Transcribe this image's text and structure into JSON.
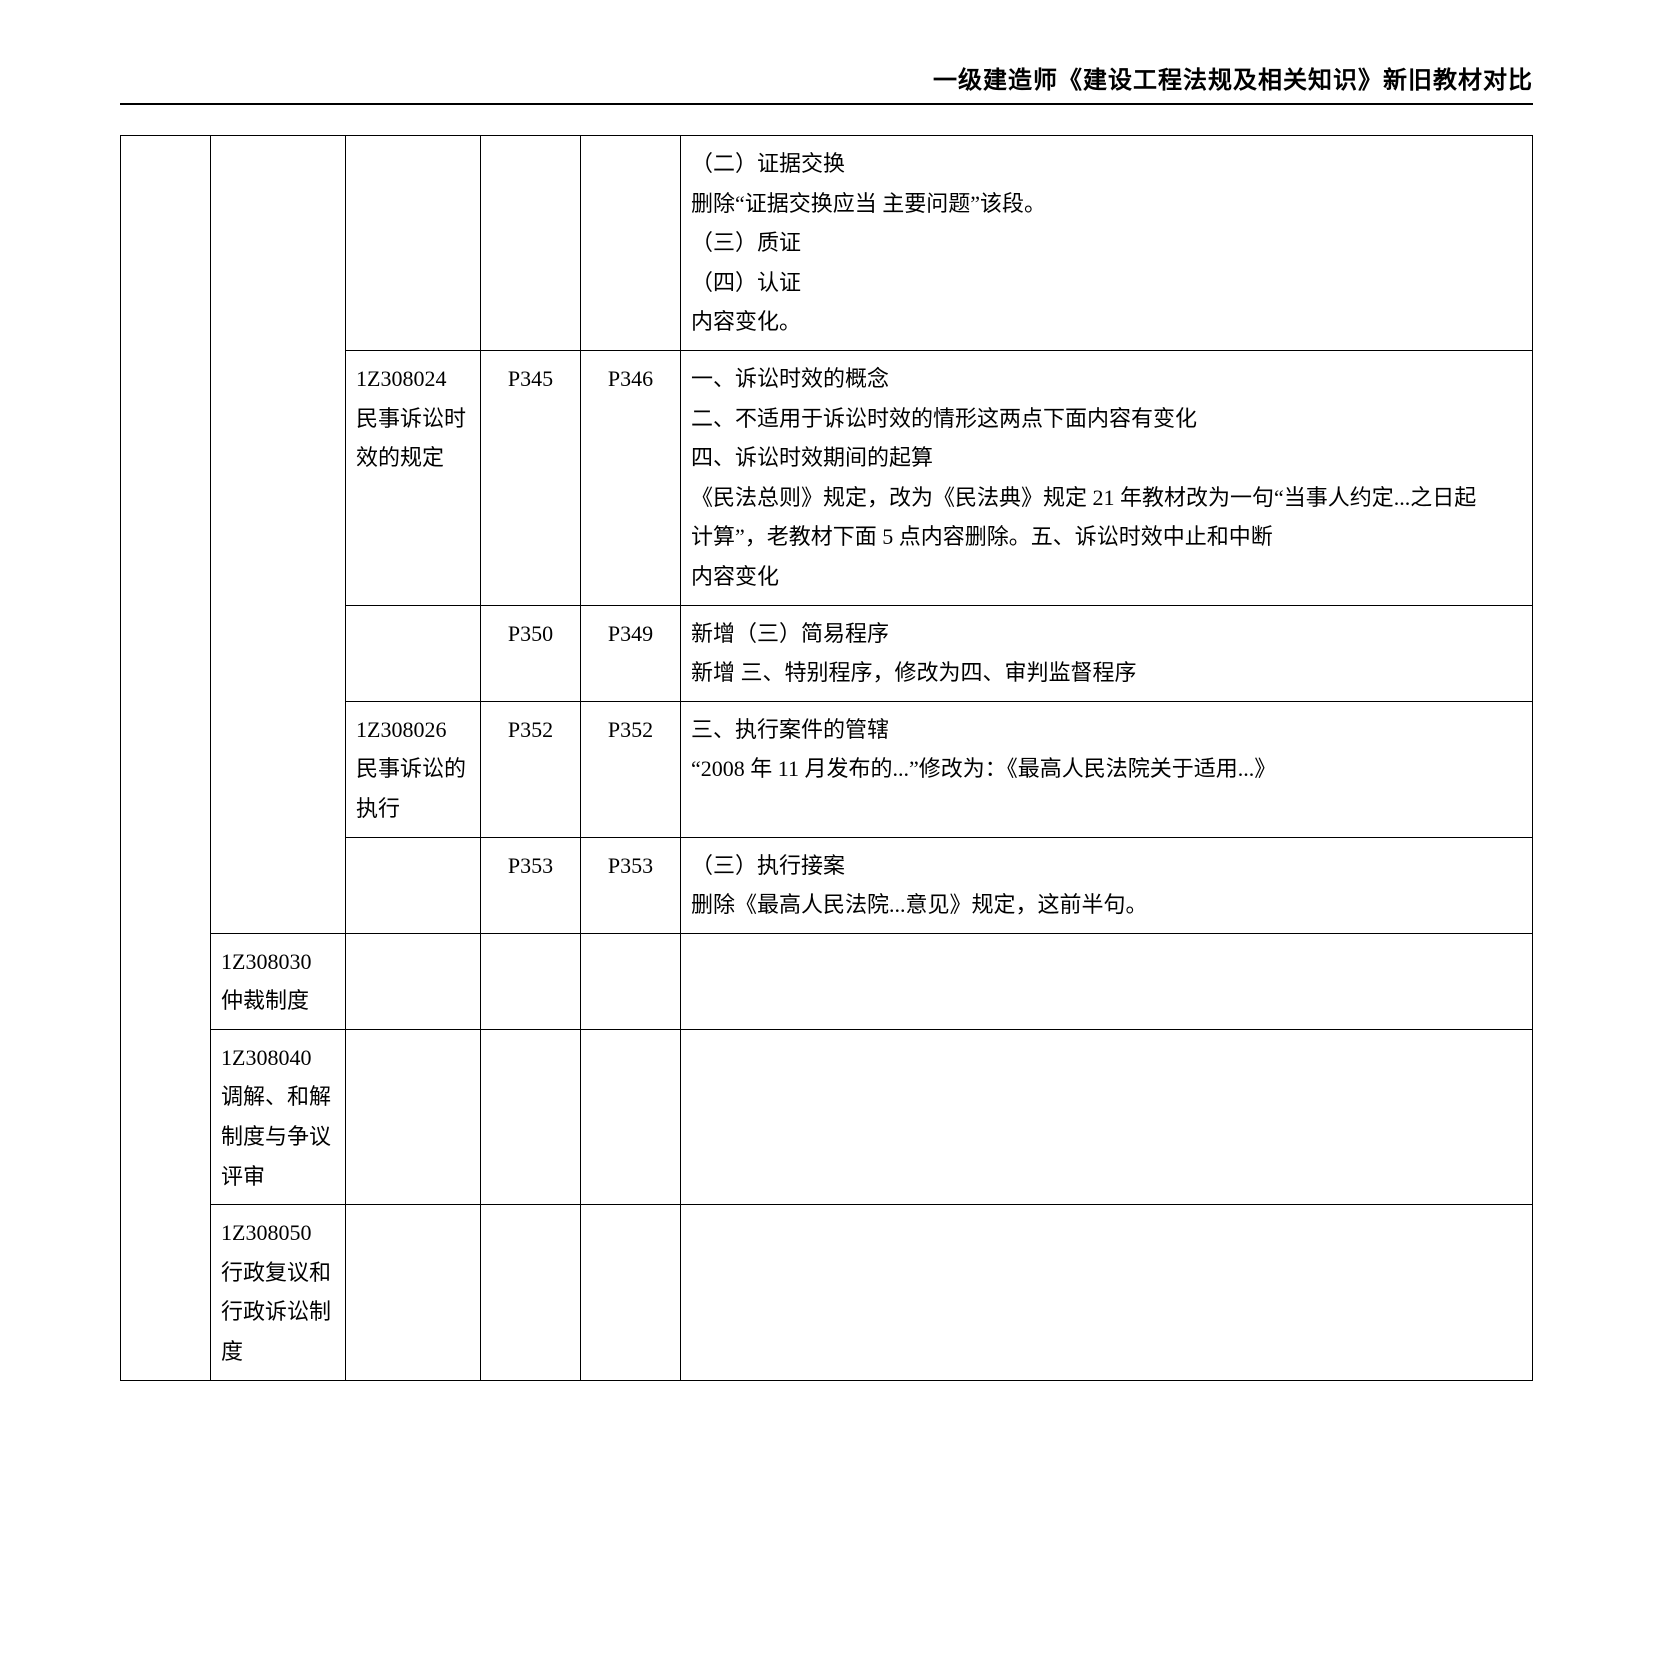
{
  "header": {
    "title": "一级建造师《建设工程法规及相关知识》新旧教材对比"
  },
  "rows": [
    {
      "c1": "",
      "c2": "",
      "c3": "",
      "c4": "",
      "c5": "",
      "c6": "（二）证据交换\n删除“证据交换应当  主要问题”该段。\n（三）质证\n（四）认证\n内容变化。"
    },
    {
      "c1": "",
      "c2": "",
      "c3": "1Z308024\n民事诉讼时效的规定",
      "c4": "P345",
      "c5": "P346",
      "c6": "一、诉讼时效的概念\n二、不适用于诉讼时效的情形这两点下面内容有变化\n四、诉讼时效期间的起算\n《民法总则》规定，改为《民法典》规定 21 年教材改为一句“当事人约定...之日起\n计算”，老教材下面 5 点内容删除。五、诉讼时效中止和中断\n内容变化"
    },
    {
      "c1": "",
      "c2": "",
      "c3": "",
      "c4": "P350",
      "c5": "P349",
      "c6": "新增（三）简易程序\n新增 三、特别程序，修改为四、审判监督程序"
    },
    {
      "c1": "",
      "c2": "",
      "c3": "1Z308026\n民事诉讼的执行",
      "c4": "P352",
      "c5": "P352",
      "c6": "三、执行案件的管辖\n“2008 年 11 月发布的...”修改为：《最高人民法院关于适用...》"
    },
    {
      "c1": "",
      "c2": "",
      "c3": "",
      "c4": "P353",
      "c5": "P353",
      "c6": "（三）执行接案\n删除《最高人民法院...意见》规定，这前半句。"
    },
    {
      "c1": "",
      "c2": "1Z308030\n仲裁制度",
      "c3": "",
      "c4": "",
      "c5": "",
      "c6": ""
    },
    {
      "c1": "",
      "c2": "1Z308040\n调解、和解制度与争议评审",
      "c3": "",
      "c4": "",
      "c5": "",
      "c6": ""
    },
    {
      "c1": "",
      "c2": "1Z308050\n行政复议和行政诉讼制度",
      "c3": "",
      "c4": "",
      "c5": "",
      "c6": ""
    }
  ]
}
